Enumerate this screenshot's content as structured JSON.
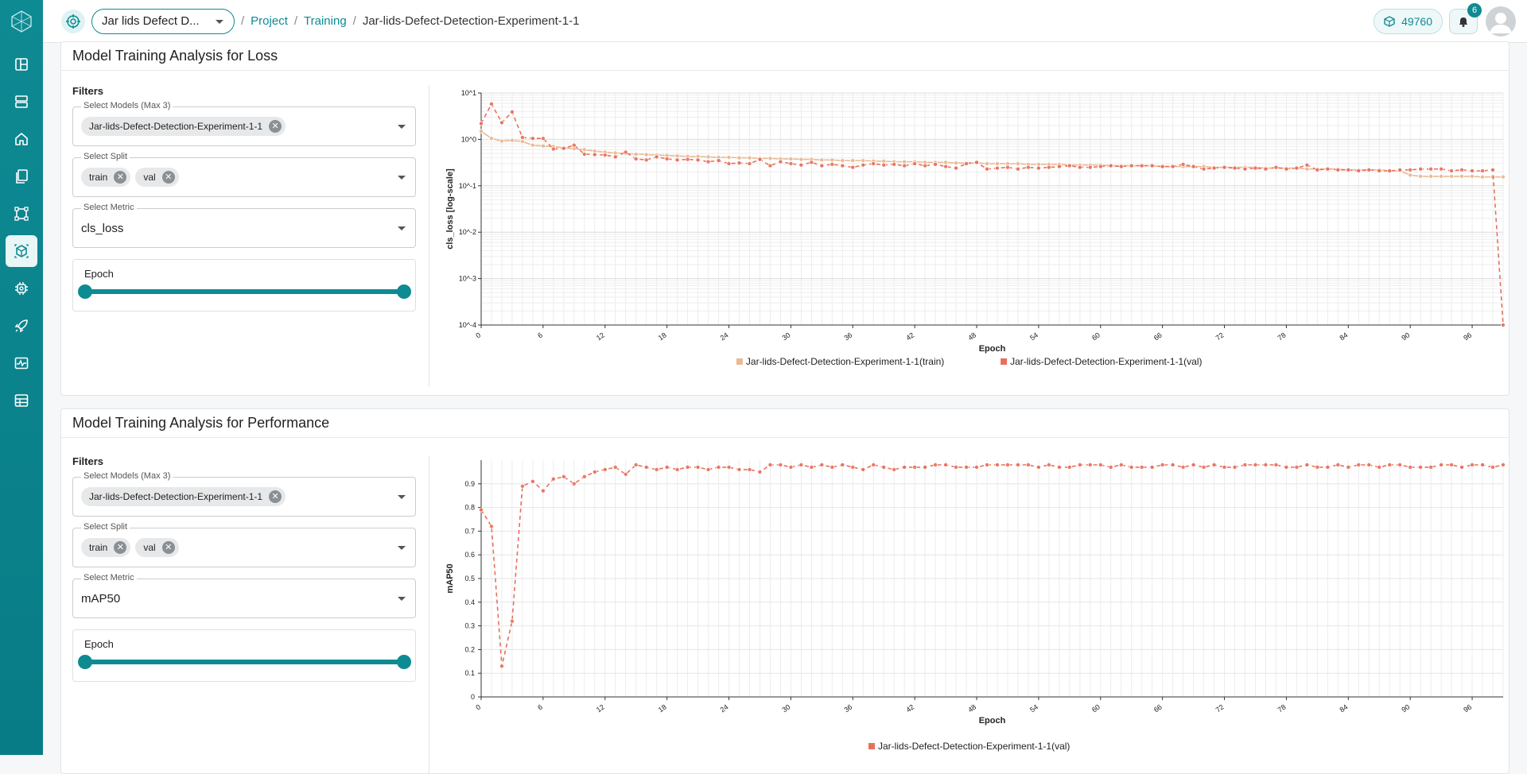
{
  "header": {
    "project_select": "Jar lids Defect D...",
    "breadcrumb": [
      "Project",
      "Training"
    ],
    "breadcrumb_current": "Jar-lids-Defect-Detection-Experiment-1-1",
    "credits": "49760",
    "notifications": "6"
  },
  "sidebar": {
    "items": [
      "dashboard",
      "datasets",
      "home",
      "documents",
      "annotate",
      "models",
      "settings",
      "deploy",
      "monitor",
      "reports"
    ],
    "active": "models"
  },
  "colors": {
    "accent": "#0e8a93",
    "train": "#e9b994",
    "val": "#e8705c"
  },
  "loss_card": {
    "title": "Model Training Analysis for Loss",
    "filters_title": "Filters",
    "models_label": "Select Models (Max 3)",
    "model_chip": "Jar-lids-Defect-Detection-Experiment-1-1",
    "split_label": "Select Split",
    "split_chip_1": "train",
    "split_chip_2": "val",
    "metric_label": "Select Metric",
    "metric_value": "cls_loss",
    "epoch_label": "Epoch"
  },
  "perf_card": {
    "title": "Model Training Analysis for Performance",
    "filters_title": "Filters",
    "models_label": "Select Models (Max 3)",
    "model_chip": "Jar-lids-Defect-Detection-Experiment-1-1",
    "split_label": "Select Split",
    "split_chip_1": "train",
    "split_chip_2": "val",
    "metric_label": "Select Metric",
    "metric_value": "mAP50",
    "epoch_label": "Epoch"
  },
  "chart_data": [
    {
      "type": "line",
      "title": "",
      "xlabel": "Epoch",
      "ylabel": "cls_loss [log-scale]",
      "y_scale": "log",
      "xlim": [
        0,
        99
      ],
      "ylim": [
        0.0001,
        10
      ],
      "x_ticks": [
        0,
        6,
        12,
        18,
        24,
        30,
        36,
        42,
        48,
        54,
        60,
        66,
        72,
        78,
        84,
        90,
        96
      ],
      "y_tick_labels": [
        "10^-4",
        "10^-3",
        "10^-2",
        "10^-1",
        "10^0",
        "10^1"
      ],
      "grid": true,
      "legend_position": "bottom",
      "series": [
        {
          "name": "Jar-lids-Defect-Detection-Experiment-1-1(train)",
          "style": "solid",
          "values": [
            1.5,
            1.05,
            0.92,
            0.95,
            0.9,
            0.75,
            0.72,
            0.7,
            0.66,
            0.63,
            0.6,
            0.56,
            0.53,
            0.51,
            0.5,
            0.48,
            0.47,
            0.46,
            0.45,
            0.44,
            0.43,
            0.43,
            0.42,
            0.41,
            0.41,
            0.4,
            0.4,
            0.39,
            0.39,
            0.38,
            0.38,
            0.37,
            0.37,
            0.36,
            0.36,
            0.35,
            0.35,
            0.35,
            0.34,
            0.34,
            0.33,
            0.33,
            0.33,
            0.32,
            0.32,
            0.32,
            0.31,
            0.31,
            0.31,
            0.3,
            0.3,
            0.3,
            0.3,
            0.29,
            0.29,
            0.29,
            0.29,
            0.28,
            0.28,
            0.28,
            0.28,
            0.27,
            0.27,
            0.27,
            0.27,
            0.27,
            0.26,
            0.26,
            0.26,
            0.26,
            0.26,
            0.25,
            0.25,
            0.25,
            0.25,
            0.25,
            0.24,
            0.24,
            0.24,
            0.24,
            0.23,
            0.23,
            0.23,
            0.23,
            0.22,
            0.22,
            0.22,
            0.22,
            0.21,
            0.21,
            0.17,
            0.16,
            0.16,
            0.16,
            0.16,
            0.16,
            0.16,
            0.155,
            0.155,
            0.155
          ]
        },
        {
          "name": "Jar-lids-Defect-Detection-Experiment-1-1(val)",
          "style": "dashed",
          "values": [
            2.2,
            5.8,
            2.3,
            3.9,
            1.1,
            1.05,
            1.05,
            0.62,
            0.64,
            0.75,
            0.48,
            0.47,
            0.46,
            0.42,
            0.53,
            0.38,
            0.36,
            0.42,
            0.38,
            0.36,
            0.37,
            0.36,
            0.33,
            0.35,
            0.3,
            0.31,
            0.3,
            0.37,
            0.27,
            0.33,
            0.3,
            0.28,
            0.32,
            0.27,
            0.29,
            0.27,
            0.25,
            0.28,
            0.3,
            0.28,
            0.29,
            0.27,
            0.3,
            0.27,
            0.29,
            0.26,
            0.24,
            0.3,
            0.32,
            0.23,
            0.24,
            0.25,
            0.23,
            0.25,
            0.24,
            0.25,
            0.26,
            0.27,
            0.25,
            0.25,
            0.26,
            0.27,
            0.26,
            0.27,
            0.27,
            0.27,
            0.26,
            0.26,
            0.29,
            0.26,
            0.23,
            0.24,
            0.25,
            0.24,
            0.23,
            0.24,
            0.23,
            0.25,
            0.23,
            0.24,
            0.28,
            0.22,
            0.23,
            0.22,
            0.22,
            0.21,
            0.22,
            0.21,
            0.21,
            0.22,
            0.22,
            0.23,
            0.23,
            0.23,
            0.21,
            0.22,
            0.21,
            0.21,
            0.22,
            0.0001
          ]
        }
      ]
    },
    {
      "type": "line",
      "title": "",
      "xlabel": "Epoch",
      "ylabel": "mAP50",
      "xlim": [
        0,
        99
      ],
      "ylim": [
        0,
        1
      ],
      "x_ticks": [
        0,
        6,
        12,
        18,
        24,
        30,
        36,
        42,
        48,
        54,
        60,
        66,
        72,
        78,
        84,
        90,
        96
      ],
      "y_ticks": [
        0,
        0.1,
        0.2,
        0.3,
        0.4,
        0.5,
        0.6,
        0.7,
        0.8,
        0.9
      ],
      "grid": true,
      "legend_position": "bottom",
      "series": [
        {
          "name": "Jar-lids-Defect-Detection-Experiment-1-1(val)",
          "style": "dashed",
          "values": [
            0.79,
            0.72,
            0.13,
            0.32,
            0.89,
            0.91,
            0.87,
            0.92,
            0.93,
            0.9,
            0.93,
            0.95,
            0.96,
            0.97,
            0.94,
            0.98,
            0.97,
            0.96,
            0.97,
            0.96,
            0.97,
            0.97,
            0.96,
            0.97,
            0.97,
            0.96,
            0.96,
            0.95,
            0.98,
            0.98,
            0.97,
            0.98,
            0.97,
            0.98,
            0.97,
            0.98,
            0.97,
            0.96,
            0.98,
            0.97,
            0.96,
            0.97,
            0.97,
            0.97,
            0.98,
            0.98,
            0.97,
            0.97,
            0.97,
            0.98,
            0.98,
            0.98,
            0.98,
            0.98,
            0.97,
            0.98,
            0.97,
            0.97,
            0.98,
            0.98,
            0.98,
            0.97,
            0.98,
            0.97,
            0.97,
            0.97,
            0.98,
            0.98,
            0.97,
            0.98,
            0.97,
            0.98,
            0.97,
            0.97,
            0.98,
            0.98,
            0.98,
            0.98,
            0.97,
            0.97,
            0.98,
            0.97,
            0.97,
            0.98,
            0.97,
            0.98,
            0.98,
            0.97,
            0.98,
            0.98,
            0.97,
            0.97,
            0.97,
            0.98,
            0.98,
            0.97,
            0.98,
            0.98,
            0.97,
            0.98
          ]
        }
      ]
    }
  ]
}
